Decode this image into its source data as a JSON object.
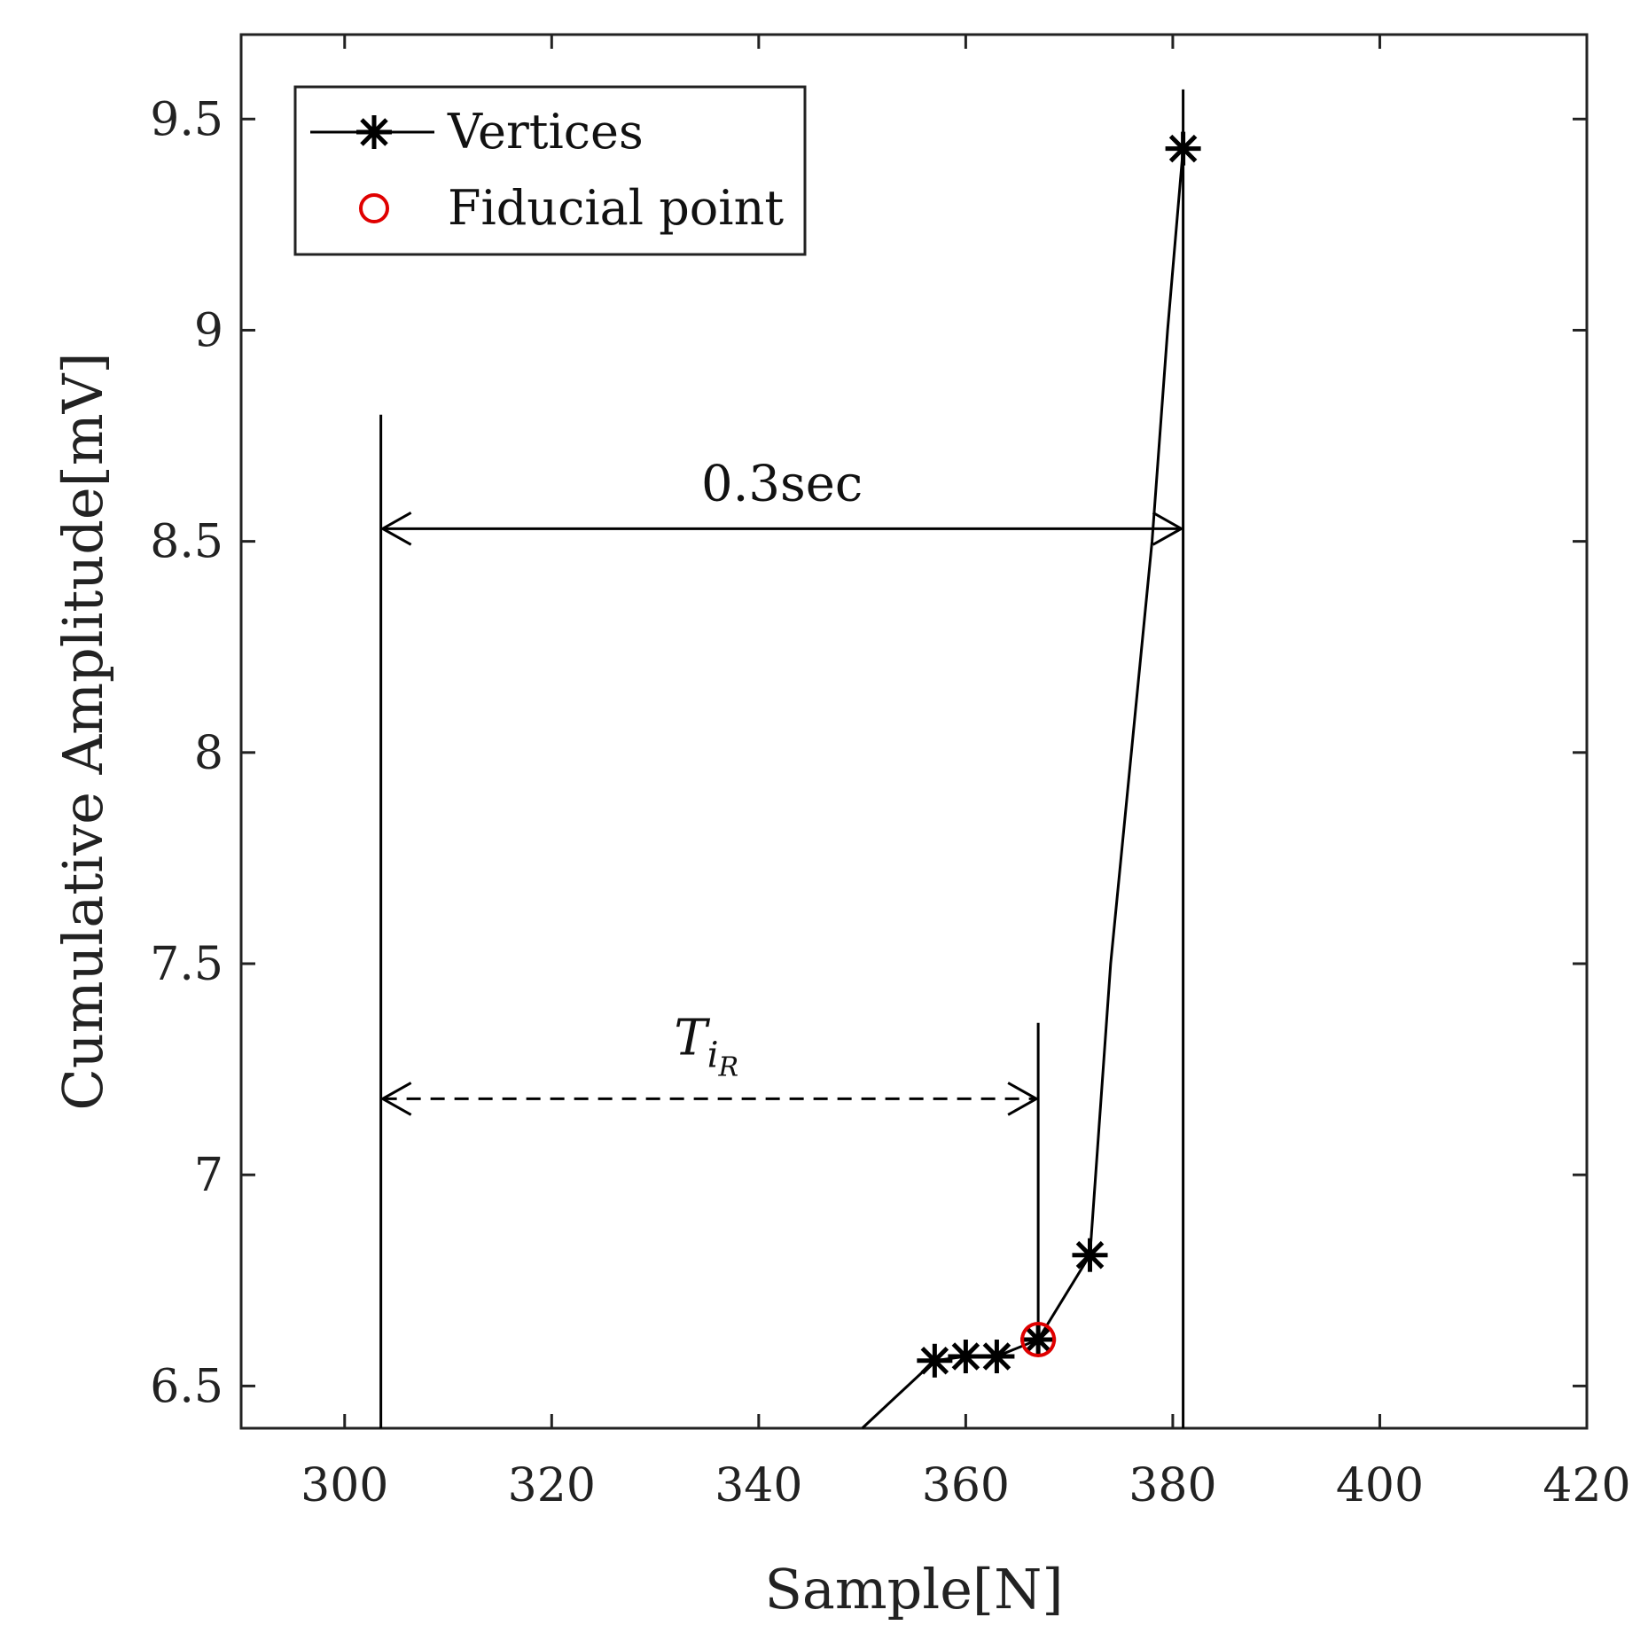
{
  "chart_data": {
    "type": "line",
    "xlabel": "Sample[N]",
    "ylabel": "Cumulative Amplitude[mV]",
    "xlim": [
      290,
      420
    ],
    "ylim": [
      6.4,
      9.7
    ],
    "xticks": [
      300,
      320,
      340,
      360,
      380,
      400,
      420
    ],
    "yticks": [
      6.5,
      7,
      7.5,
      8,
      8.5,
      9,
      9.5
    ],
    "grid": false,
    "legend_position": "top-left",
    "series": [
      {
        "name": "Vertices",
        "color": "#000000",
        "marker": "asterisk",
        "line_points": [
          {
            "x": 350,
            "y": 6.4
          },
          {
            "x": 357,
            "y": 6.56
          },
          {
            "x": 360,
            "y": 6.57
          },
          {
            "x": 363,
            "y": 6.57
          },
          {
            "x": 367,
            "y": 6.61
          },
          {
            "x": 372,
            "y": 6.81
          },
          {
            "x": 374,
            "y": 7.5
          },
          {
            "x": 376,
            "y": 8.0
          },
          {
            "x": 378,
            "y": 8.5
          },
          {
            "x": 379.5,
            "y": 9.0
          },
          {
            "x": 381,
            "y": 9.43
          }
        ],
        "markers": [
          {
            "x": 357,
            "y": 6.56
          },
          {
            "x": 360,
            "y": 6.57
          },
          {
            "x": 363,
            "y": 6.57
          },
          {
            "x": 367,
            "y": 6.61
          },
          {
            "x": 372,
            "y": 6.81
          },
          {
            "x": 381,
            "y": 9.43
          }
        ]
      },
      {
        "name": "Fiducial point",
        "color": "#e00000",
        "marker": "circle",
        "markers": [
          {
            "x": 367,
            "y": 6.61
          }
        ]
      }
    ],
    "vertical_lines": [
      {
        "x": 303.5,
        "y_from": 6.4,
        "y_to": 8.8
      },
      {
        "x": 381,
        "y_from": 6.4,
        "y_to": 9.57
      },
      {
        "x": 367,
        "y_from": 6.61,
        "y_to": 7.36
      }
    ],
    "annotations": [
      {
        "kind": "double-arrow-solid",
        "x_from": 303.5,
        "x_to": 381,
        "y": 8.53,
        "label": "0.3sec"
      },
      {
        "kind": "double-arrow-dashed",
        "x_from": 303.5,
        "x_to": 367,
        "y": 7.18,
        "label_main": "T",
        "label_sub": "i",
        "label_subsub": "R"
      }
    ]
  }
}
